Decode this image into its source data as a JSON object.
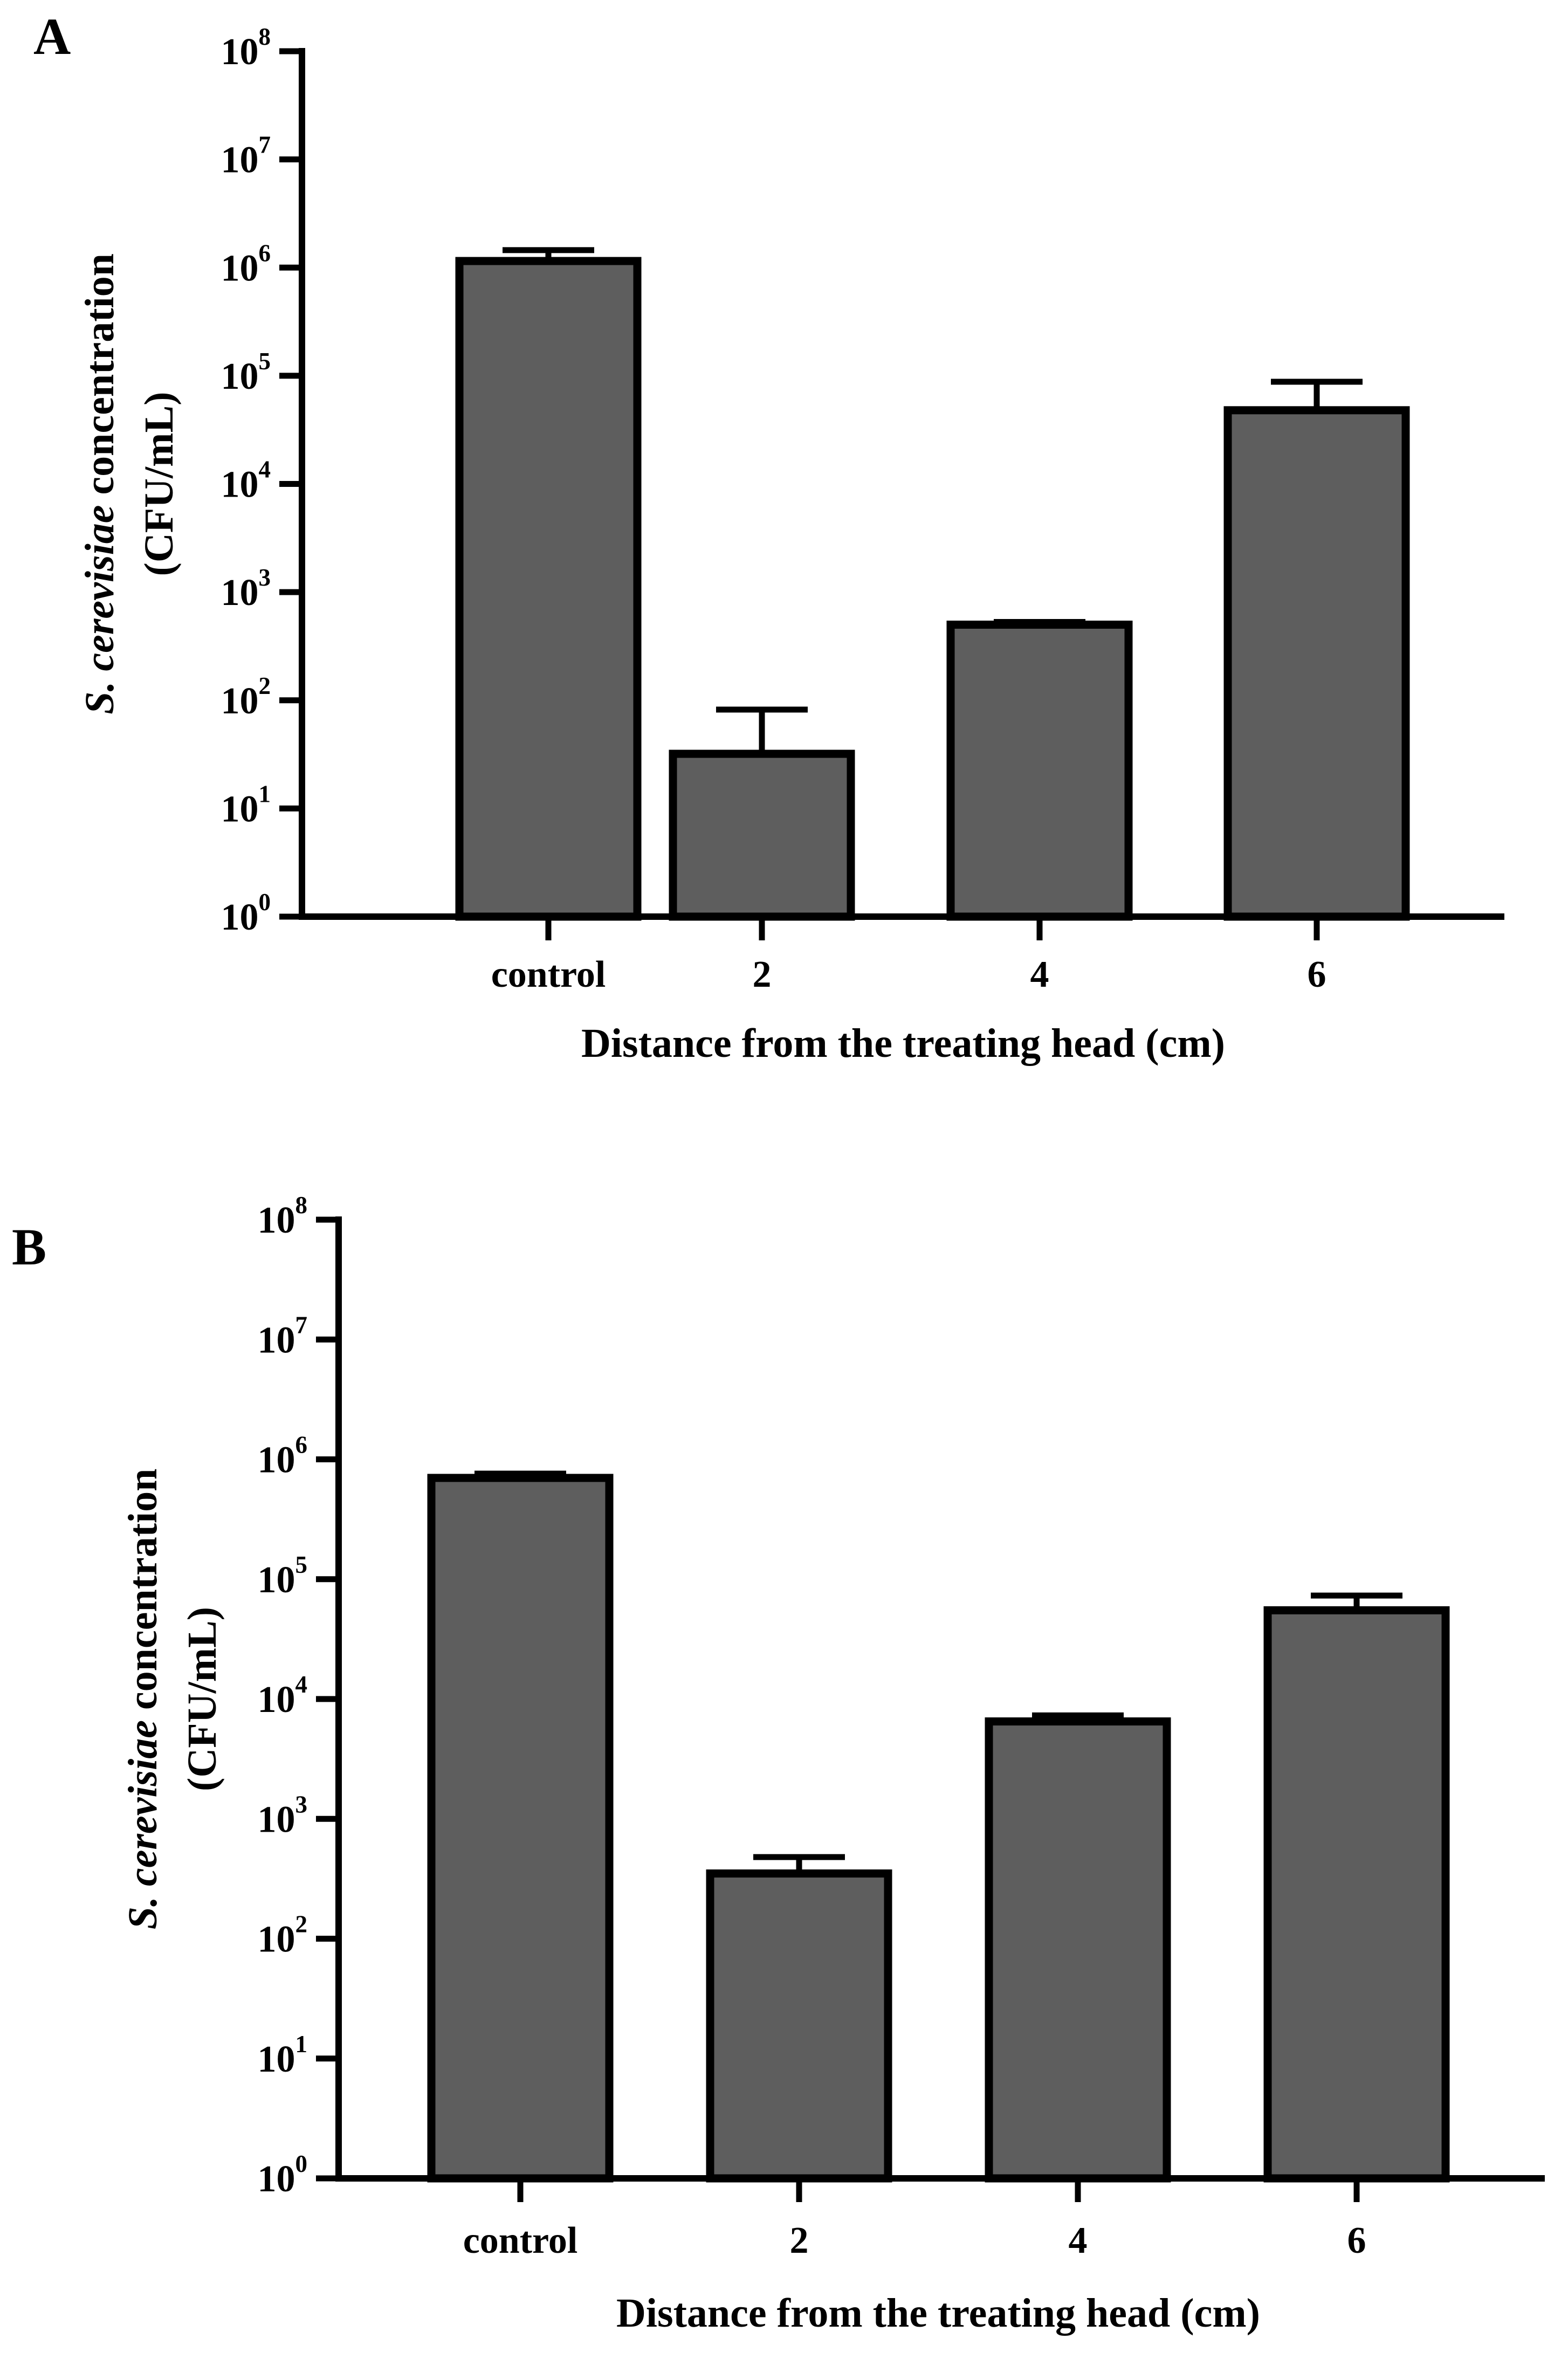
{
  "chart_data": [
    {
      "panel": "A",
      "type": "bar",
      "yscale": "log10",
      "ylim": [
        1,
        100000000
      ],
      "xlabel": "Distance from the treating head (cm)",
      "ylabel_species": "S. cerevisiae",
      "ylabel_rest": " concentration",
      "ylabel_unit": "(CFU/mL)",
      "ytick_base": "10",
      "ytick_exponents": [
        "0",
        "1",
        "2",
        "3",
        "4",
        "5",
        "6",
        "7",
        "8"
      ],
      "categories": [
        "control",
        "2",
        "4",
        "6"
      ],
      "values": [
        1150000,
        32,
        500,
        48000
      ],
      "errors": [
        300000,
        50,
        30,
        40000
      ]
    },
    {
      "panel": "B",
      "type": "bar",
      "yscale": "log10",
      "ylim": [
        1,
        100000000
      ],
      "xlabel": "Distance from the treating head (cm)",
      "ylabel_species": "S. cerevisiae",
      "ylabel_rest": " concentration",
      "ylabel_unit": "(CFU/mL)",
      "ytick_base": "10",
      "ytick_exponents": [
        "0",
        "1",
        "2",
        "3",
        "4",
        "5",
        "6",
        "7",
        "8"
      ],
      "categories": [
        "control",
        "2",
        "4",
        "6"
      ],
      "values": [
        700000,
        350,
        6500,
        55000
      ],
      "errors": [
        60000,
        130,
        800,
        18000
      ]
    }
  ],
  "colors": {
    "bar_fill": "#5e5e5e",
    "outline": "#000000"
  }
}
